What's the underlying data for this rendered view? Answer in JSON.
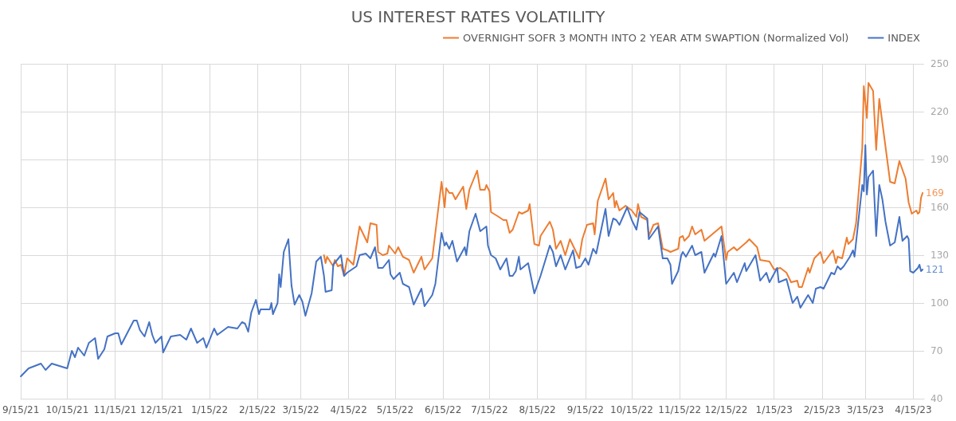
{
  "chart_data": {
    "type": "line",
    "title": "US INTEREST RATES VOLATILITY",
    "legend": "top right",
    "grid": true,
    "marker": "none",
    "line_style": "solid",
    "xlim": [
      "2021-09-15",
      "2023-04-22"
    ],
    "xticks": [
      {
        "value": "2021-09-15",
        "label": "9/15/21"
      },
      {
        "value": "2021-10-15",
        "label": "10/15/21"
      },
      {
        "value": "2021-11-15",
        "label": "11/15/21"
      },
      {
        "value": "2021-12-15",
        "label": "12/15/21"
      },
      {
        "value": "2022-01-15",
        "label": "1/15/22"
      },
      {
        "value": "2022-02-15",
        "label": "2/15/22"
      },
      {
        "value": "2022-03-15",
        "label": "3/15/22"
      },
      {
        "value": "2022-04-15",
        "label": "4/15/22"
      },
      {
        "value": "2022-05-15",
        "label": "5/15/22"
      },
      {
        "value": "2022-06-15",
        "label": "6/15/22"
      },
      {
        "value": "2022-07-15",
        "label": "7/15/22"
      },
      {
        "value": "2022-08-15",
        "label": "8/15/22"
      },
      {
        "value": "2022-09-15",
        "label": "9/15/22"
      },
      {
        "value": "2022-10-15",
        "label": "10/15/22"
      },
      {
        "value": "2022-11-15",
        "label": "11/15/22"
      },
      {
        "value": "2022-12-15",
        "label": "12/15/22"
      },
      {
        "value": "2023-01-15",
        "label": "1/15/23"
      },
      {
        "value": "2023-02-15",
        "label": "2/15/23"
      },
      {
        "value": "2023-03-15",
        "label": "3/15/23"
      },
      {
        "value": "2023-04-15",
        "label": "4/15/23"
      }
    ],
    "ylim": [
      40,
      250
    ],
    "yticks": [
      40,
      70,
      100,
      130,
      160,
      190,
      220,
      250
    ],
    "annotations": [
      {
        "text": "169",
        "x": "2023-04-21",
        "y": 169
      },
      {
        "text": "121",
        "x": "2023-04-21",
        "y": 121
      }
    ],
    "series": [
      {
        "name": "OVERNIGHT SOFR 3 MONTH INTO 2 YEAR ATM SWAPTION (Normalized Vol)",
        "color": "#ed7d31",
        "x": [
          "2022-03-30",
          "2022-03-31",
          "2022-04-01",
          "2022-04-05",
          "2022-04-06",
          "2022-04-08",
          "2022-04-10",
          "2022-04-12",
          "2022-04-14",
          "2022-04-18",
          "2022-04-22",
          "2022-04-27",
          "2022-04-29",
          "2022-05-03",
          "2022-05-04",
          "2022-05-07",
          "2022-05-10",
          "2022-05-11",
          "2022-05-15",
          "2022-05-17",
          "2022-05-20",
          "2022-05-24",
          "2022-05-27",
          "2022-06-01",
          "2022-06-03",
          "2022-06-08",
          "2022-06-12",
          "2022-06-14",
          "2022-06-16",
          "2022-06-17",
          "2022-06-19",
          "2022-06-21",
          "2022-06-23",
          "2022-06-28",
          "2022-06-30",
          "2022-07-02",
          "2022-07-07",
          "2022-07-09",
          "2022-07-12",
          "2022-07-13",
          "2022-07-15",
          "2022-07-16",
          "2022-07-21",
          "2022-07-24",
          "2022-07-26",
          "2022-07-28",
          "2022-07-30",
          "2022-08-03",
          "2022-08-05",
          "2022-08-09",
          "2022-08-10",
          "2022-08-13",
          "2022-08-16",
          "2022-08-17",
          "2022-08-23",
          "2022-08-25",
          "2022-08-27",
          "2022-08-30",
          "2022-09-02",
          "2022-09-05",
          "2022-09-11",
          "2022-09-13",
          "2022-09-16",
          "2022-09-20",
          "2022-09-21",
          "2022-09-23",
          "2022-09-28",
          "2022-09-30",
          "2022-10-03",
          "2022-10-04",
          "2022-10-05",
          "2022-10-07",
          "2022-10-11",
          "2022-10-15",
          "2022-10-18",
          "2022-10-19",
          "2022-10-21",
          "2022-10-25",
          "2022-10-26",
          "2022-10-29",
          "2022-11-01",
          "2022-11-04",
          "2022-11-07",
          "2022-11-09",
          "2022-11-14",
          "2022-11-15",
          "2022-11-17",
          "2022-11-18",
          "2022-11-21",
          "2022-11-23",
          "2022-11-25",
          "2022-11-29",
          "2022-12-01",
          "2022-12-12",
          "2022-12-15",
          "2022-12-16",
          "2022-12-20",
          "2022-12-22",
          "2022-12-28",
          "2022-12-30",
          "2023-01-04",
          "2023-01-06",
          "2023-01-12",
          "2023-01-15",
          "2023-01-19",
          "2023-01-23",
          "2023-01-26",
          "2023-01-30",
          "2023-01-31",
          "2023-02-02",
          "2023-02-06",
          "2023-02-07",
          "2023-02-10",
          "2023-02-14",
          "2023-02-16",
          "2023-02-22",
          "2023-02-24",
          "2023-02-25",
          "2023-02-28",
          "2023-03-03",
          "2023-03-04",
          "2023-03-07",
          "2023-03-09",
          "2023-03-13",
          "2023-03-14",
          "2023-03-16",
          "2023-03-17",
          "2023-03-20",
          "2023-03-22",
          "2023-03-24",
          "2023-03-26",
          "2023-03-31",
          "2023-04-03",
          "2023-04-06",
          "2023-04-10",
          "2023-04-12",
          "2023-04-14",
          "2023-04-17",
          "2023-04-18",
          "2023-04-19",
          "2023-04-20",
          "2023-04-21"
        ],
        "values": [
          130,
          125,
          129,
          123,
          127,
          123,
          124,
          117,
          128,
          124,
          148,
          138,
          150,
          149,
          132,
          130,
          131,
          136,
          131,
          135,
          129,
          127,
          119,
          129,
          121,
          128,
          160,
          176,
          160,
          172,
          169,
          169,
          165,
          173,
          159,
          171,
          183,
          171,
          171,
          174,
          170,
          157,
          154,
          152,
          152,
          144,
          146,
          157,
          156,
          158,
          162,
          137,
          136,
          142,
          151,
          146,
          134,
          139,
          130,
          140,
          128,
          140,
          149,
          150,
          143,
          164,
          178,
          165,
          169,
          160,
          164,
          158,
          161,
          158,
          154,
          162,
          154,
          152,
          142,
          149,
          150,
          134,
          133,
          132,
          134,
          141,
          142,
          139,
          142,
          148,
          143,
          146,
          139,
          148,
          127,
          132,
          135,
          133,
          138,
          140,
          135,
          127,
          126,
          121,
          122,
          119,
          113,
          114,
          110,
          110,
          122,
          119,
          128,
          132,
          125,
          133,
          125,
          129,
          128,
          141,
          137,
          140,
          150,
          197,
          236,
          216,
          238,
          233,
          196,
          228,
          213,
          176,
          175,
          189,
          178,
          163,
          156,
          158,
          156,
          157,
          166,
          169
        ]
      },
      {
        "name": "INDEX",
        "color": "#4472c4",
        "x": [
          "2021-09-15",
          "2021-09-20",
          "2021-09-28",
          "2021-10-01",
          "2021-10-05",
          "2021-10-15",
          "2021-10-18",
          "2021-10-20",
          "2021-10-22",
          "2021-10-26",
          "2021-10-29",
          "2021-11-02",
          "2021-11-04",
          "2021-11-08",
          "2021-11-10",
          "2021-11-15",
          "2021-11-17",
          "2021-11-19",
          "2021-11-27",
          "2021-11-29",
          "2021-12-01",
          "2021-12-04",
          "2021-12-07",
          "2021-12-09",
          "2021-12-11",
          "2021-12-15",
          "2021-12-16",
          "2021-12-21",
          "2021-12-27",
          "2021-12-31",
          "2022-01-03",
          "2022-01-07",
          "2022-01-11",
          "2022-01-13",
          "2022-01-18",
          "2022-01-20",
          "2022-01-27",
          "2022-02-02",
          "2022-02-05",
          "2022-02-07",
          "2022-02-09",
          "2022-02-11",
          "2022-02-14",
          "2022-02-16",
          "2022-02-17",
          "2022-02-23",
          "2022-02-24",
          "2022-02-25",
          "2022-02-28",
          "2022-03-01",
          "2022-03-02",
          "2022-03-04",
          "2022-03-07",
          "2022-03-09",
          "2022-03-11",
          "2022-03-14",
          "2022-03-16",
          "2022-03-18",
          "2022-03-22",
          "2022-03-25",
          "2022-03-28",
          "2022-03-30",
          "2022-03-31",
          "2022-04-04",
          "2022-04-05",
          "2022-04-10",
          "2022-04-12",
          "2022-04-14",
          "2022-04-20",
          "2022-04-22",
          "2022-04-26",
          "2022-04-29",
          "2022-05-02",
          "2022-05-04",
          "2022-05-07",
          "2022-05-11",
          "2022-05-12",
          "2022-05-14",
          "2022-05-18",
          "2022-05-20",
          "2022-05-24",
          "2022-05-27",
          "2022-06-01",
          "2022-06-03",
          "2022-06-08",
          "2022-06-10",
          "2022-06-14",
          "2022-06-16",
          "2022-06-17",
          "2022-06-19",
          "2022-06-21",
          "2022-06-24",
          "2022-06-29",
          "2022-06-30",
          "2022-07-02",
          "2022-07-06",
          "2022-07-09",
          "2022-07-13",
          "2022-07-14",
          "2022-07-16",
          "2022-07-19",
          "2022-07-22",
          "2022-07-26",
          "2022-07-28",
          "2022-07-30",
          "2022-08-01",
          "2022-08-03",
          "2022-08-04",
          "2022-08-09",
          "2022-08-13",
          "2022-08-17",
          "2022-08-23",
          "2022-08-25",
          "2022-08-27",
          "2022-08-30",
          "2022-09-02",
          "2022-09-07",
          "2022-09-09",
          "2022-09-12",
          "2022-09-15",
          "2022-09-17",
          "2022-09-20",
          "2022-09-22",
          "2022-09-28",
          "2022-09-30",
          "2022-10-03",
          "2022-10-05",
          "2022-10-07",
          "2022-10-12",
          "2022-10-15",
          "2022-10-18",
          "2022-10-20",
          "2022-10-25",
          "2022-10-26",
          "2022-11-01",
          "2022-11-04",
          "2022-11-07",
          "2022-11-09",
          "2022-11-10",
          "2022-11-14",
          "2022-11-16",
          "2022-11-17",
          "2022-11-19",
          "2022-11-23",
          "2022-11-25",
          "2022-11-29",
          "2022-12-01",
          "2022-12-07",
          "2022-12-08",
          "2022-12-12",
          "2022-12-15",
          "2022-12-20",
          "2022-12-22",
          "2022-12-27",
          "2022-12-28",
          "2023-01-03",
          "2023-01-06",
          "2023-01-10",
          "2023-01-12",
          "2023-01-17",
          "2023-01-18",
          "2023-01-23",
          "2023-01-27",
          "2023-01-30",
          "2023-02-01",
          "2023-02-06",
          "2023-02-09",
          "2023-02-11",
          "2023-02-14",
          "2023-02-16",
          "2023-02-21",
          "2023-02-23",
          "2023-02-25",
          "2023-02-27",
          "2023-03-01",
          "2023-03-05",
          "2023-03-07",
          "2023-03-08",
          "2023-03-13",
          "2023-03-14",
          "2023-03-15",
          "2023-03-16",
          "2023-03-17",
          "2023-03-20",
          "2023-03-22",
          "2023-03-24",
          "2023-03-26",
          "2023-03-28",
          "2023-03-31",
          "2023-04-03",
          "2023-04-06",
          "2023-04-08",
          "2023-04-11",
          "2023-04-12",
          "2023-04-13",
          "2023-04-15",
          "2023-04-18",
          "2023-04-19",
          "2023-04-20",
          "2023-04-21"
        ],
        "values": [
          54,
          59,
          62,
          58,
          62,
          59,
          70,
          66,
          72,
          67,
          75,
          78,
          65,
          71,
          79,
          81,
          81,
          74,
          89,
          89,
          83,
          79,
          88,
          80,
          75,
          79,
          69,
          79,
          80,
          77,
          84,
          75,
          78,
          72,
          84,
          80,
          85,
          84,
          88,
          87,
          82,
          94,
          102,
          93,
          96,
          96,
          100,
          93,
          100,
          118,
          110,
          132,
          140,
          111,
          99,
          105,
          101,
          92,
          106,
          126,
          129,
          117,
          107,
          108,
          124,
          130,
          117,
          119,
          123,
          130,
          131,
          128,
          135,
          122,
          122,
          127,
          118,
          115,
          119,
          112,
          110,
          99,
          109,
          98,
          105,
          112,
          144,
          136,
          138,
          134,
          139,
          126,
          135,
          130,
          145,
          156,
          145,
          148,
          136,
          130,
          128,
          121,
          128,
          117,
          117,
          120,
          129,
          121,
          125,
          106,
          117,
          136,
          132,
          123,
          130,
          121,
          133,
          122,
          123,
          128,
          124,
          134,
          131,
          159,
          142,
          153,
          152,
          149,
          160,
          152,
          146,
          157,
          153,
          140,
          148,
          128,
          128,
          124,
          112,
          120,
          130,
          132,
          129,
          136,
          130,
          132,
          119,
          131,
          129,
          142,
          112,
          119,
          113,
          125,
          120,
          130,
          114,
          119,
          113,
          122,
          113,
          115,
          100,
          104,
          97,
          105,
          100,
          109,
          110,
          109,
          119,
          118,
          123,
          121,
          123,
          129,
          133,
          129,
          174,
          170,
          199,
          168,
          179,
          183,
          142,
          174,
          165,
          151,
          136,
          138,
          154,
          139,
          142,
          140,
          120,
          119,
          122,
          124,
          120,
          121
        ]
      }
    ]
  }
}
